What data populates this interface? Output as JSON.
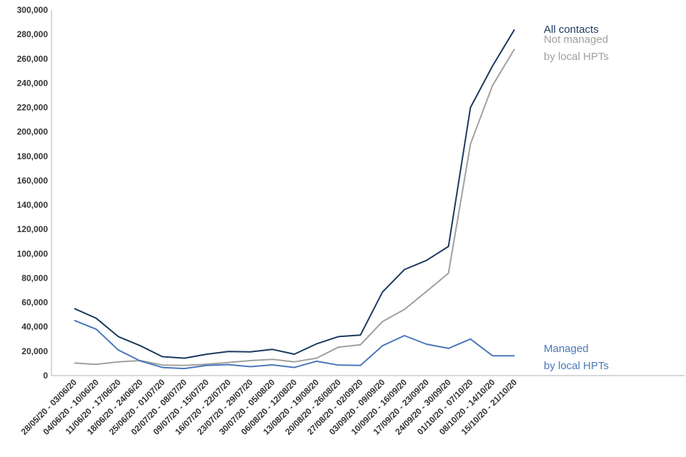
{
  "chart_data": {
    "type": "line",
    "categories": [
      "28/05/20 - 03/06/20",
      "04/06/20 - 10/06/20",
      "11/06/20 - 17/06/20",
      "18/06/20 - 24/06/20",
      "25/06/20 - 01/07/20",
      "02/07/20 - 08/07/20",
      "09/07/20 - 15/07/20",
      "16/07/20 - 22/07/20",
      "23/07/20 - 29/07/20",
      "30/07/20 - 05/08/20",
      "06/08/20 - 12/08/20",
      "13/08/20 - 19/08/20",
      "20/08/20 - 26/08/20",
      "27/08/20 - 02/09/20",
      "03/09/20 - 09/09/20",
      "10/09/20 - 16/09/20",
      "17/09/20 - 23/09/20",
      "24/09/20 - 30/09/20",
      "01/10/20 - 07/10/20",
      "08/10/20 - 14/10/20",
      "15/10/20 - 21/10/20"
    ],
    "series": [
      {
        "name": "All contacts",
        "label_lines": [
          "All contacts"
        ],
        "color": "#1b3a5e",
        "values": [
          55000,
          47000,
          32000,
          24500,
          15500,
          14300,
          17500,
          19800,
          19500,
          21500,
          17600,
          26000,
          32000,
          33300,
          68500,
          87000,
          94500,
          106000,
          220000,
          254000,
          284000
        ]
      },
      {
        "name": "Not managed by local HPTs",
        "label_lines": [
          "Not managed",
          "by local HPTs"
        ],
        "color": "#a0a0a0",
        "values": [
          10300,
          9200,
          11300,
          12300,
          8700,
          8300,
          9300,
          10800,
          12300,
          13300,
          11300,
          14300,
          23300,
          25300,
          44300,
          54300,
          69000,
          84000,
          190000,
          238000,
          268000
        ]
      },
      {
        "name": "Managed by local HPTs",
        "label_lines": [
          "Managed",
          "by local HPTs"
        ],
        "color": "#4a78b8",
        "values": [
          45300,
          38000,
          21000,
          12000,
          6700,
          5800,
          8300,
          9000,
          7300,
          8800,
          6700,
          11800,
          8600,
          8300,
          24500,
          32800,
          25800,
          22300,
          30000,
          16300,
          16300
        ]
      }
    ],
    "ylim": [
      0,
      300000
    ],
    "yticks": [
      "0",
      "20,000",
      "40,000",
      "60,000",
      "80,000",
      "100,000",
      "120,000",
      "140,000",
      "160,000",
      "180,000",
      "200,000",
      "220,000",
      "240,000",
      "260,000",
      "280,000",
      "300,000"
    ],
    "ytick_values": [
      0,
      20000,
      40000,
      60000,
      80000,
      100000,
      120000,
      140000,
      160000,
      180000,
      200000,
      220000,
      240000,
      260000,
      280000,
      300000
    ],
    "grid": false,
    "legend": "inline labels at line ends"
  }
}
